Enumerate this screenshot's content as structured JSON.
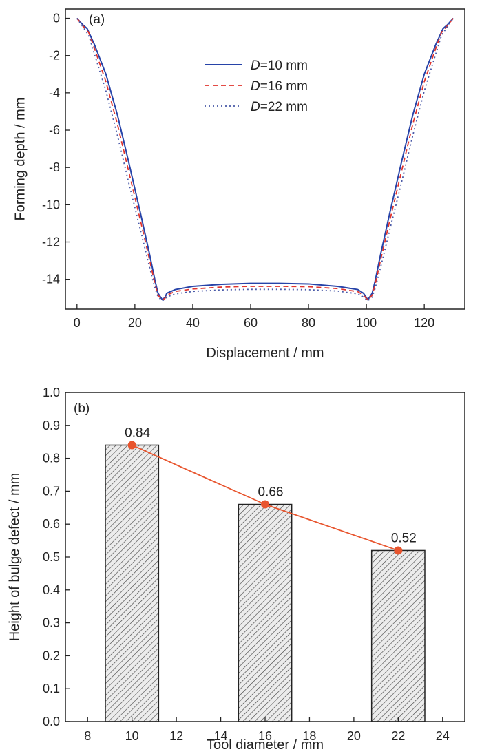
{
  "colors": {
    "series_d10": "#2743a8",
    "series_d16": "#e0332d",
    "series_d22": "#4a5aa8",
    "trend_line": "#e8552e",
    "bar_fill": "#e8e8e8",
    "hatch": "#444444",
    "axis": "#222222"
  },
  "chart_data": [
    {
      "type": "line",
      "panel_label": "(a)",
      "xlabel": "Displacement / mm",
      "ylabel": "Forming depth / mm",
      "xlim": [
        -4,
        134
      ],
      "ylim": [
        -15.6,
        0.5
      ],
      "x_ticks": [
        0,
        20,
        40,
        60,
        80,
        100,
        120
      ],
      "y_ticks": [
        0,
        -2,
        -4,
        -6,
        -8,
        -10,
        -12,
        -14
      ],
      "x_tick_labels": [
        "0",
        "20",
        "40",
        "60",
        "80",
        "100",
        "120"
      ],
      "y_tick_labels": [
        "0",
        "-2",
        "-4",
        "-6",
        "-8",
        "-10",
        "-12",
        "-14"
      ],
      "legend_position": "top-center",
      "series": [
        {
          "name_prefix": "D",
          "name_suffix": "=10 mm",
          "line_style": "solid",
          "color_key": "series_d10",
          "points": [
            [
              0,
              0
            ],
            [
              2,
              -0.35
            ],
            [
              3.5,
              -0.55
            ],
            [
              6,
              -1.4
            ],
            [
              10,
              -3.0
            ],
            [
              14,
              -5.2
            ],
            [
              18,
              -7.8
            ],
            [
              22,
              -10.5
            ],
            [
              25,
              -12.6
            ],
            [
              27,
              -14.1
            ],
            [
              28,
              -14.75
            ],
            [
              29.5,
              -15.1
            ],
            [
              30.5,
              -14.95
            ],
            [
              31,
              -14.75
            ],
            [
              34,
              -14.55
            ],
            [
              40,
              -14.38
            ],
            [
              50,
              -14.27
            ],
            [
              60,
              -14.22
            ],
            [
              70,
              -14.22
            ],
            [
              80,
              -14.25
            ],
            [
              90,
              -14.38
            ],
            [
              97,
              -14.55
            ],
            [
              99,
              -14.75
            ],
            [
              100.5,
              -15.1
            ],
            [
              102,
              -14.75
            ],
            [
              103,
              -14.1
            ],
            [
              105,
              -12.6
            ],
            [
              108,
              -10.5
            ],
            [
              112,
              -7.8
            ],
            [
              116,
              -5.2
            ],
            [
              120,
              -3.0
            ],
            [
              124,
              -1.4
            ],
            [
              126.5,
              -0.55
            ],
            [
              128,
              -0.35
            ],
            [
              130,
              0
            ]
          ]
        },
        {
          "name_prefix": "D",
          "name_suffix": "=16 mm",
          "line_style": "dashed",
          "color_key": "series_d16",
          "points": [
            [
              0,
              0
            ],
            [
              2,
              -0.4
            ],
            [
              4,
              -0.75
            ],
            [
              6,
              -1.6
            ],
            [
              10,
              -3.4
            ],
            [
              14,
              -5.7
            ],
            [
              18,
              -8.3
            ],
            [
              22,
              -10.9
            ],
            [
              25,
              -12.9
            ],
            [
              27,
              -14.3
            ],
            [
              28,
              -14.85
            ],
            [
              29.5,
              -15.12
            ],
            [
              30.5,
              -15.0
            ],
            [
              31,
              -14.85
            ],
            [
              34,
              -14.65
            ],
            [
              40,
              -14.52
            ],
            [
              50,
              -14.42
            ],
            [
              60,
              -14.38
            ],
            [
              70,
              -14.38
            ],
            [
              80,
              -14.4
            ],
            [
              90,
              -14.5
            ],
            [
              97,
              -14.66
            ],
            [
              99,
              -14.85
            ],
            [
              100.5,
              -15.12
            ],
            [
              102,
              -14.85
            ],
            [
              103,
              -14.3
            ],
            [
              105,
              -12.9
            ],
            [
              108,
              -10.9
            ],
            [
              112,
              -8.3
            ],
            [
              116,
              -5.7
            ],
            [
              120,
              -3.4
            ],
            [
              124,
              -1.6
            ],
            [
              126,
              -0.75
            ],
            [
              128,
              -0.4
            ],
            [
              130,
              0
            ]
          ]
        },
        {
          "name_prefix": "D",
          "name_suffix": "=22 mm",
          "line_style": "dotted",
          "color_key": "series_d22",
          "points": [
            [
              0,
              0
            ],
            [
              2,
              -0.45
            ],
            [
              4,
              -0.9
            ],
            [
              6,
              -1.9
            ],
            [
              10,
              -3.9
            ],
            [
              14,
              -6.3
            ],
            [
              18,
              -8.9
            ],
            [
              22,
              -11.4
            ],
            [
              25,
              -13.3
            ],
            [
              27,
              -14.5
            ],
            [
              28,
              -14.95
            ],
            [
              29.5,
              -15.15
            ],
            [
              30.5,
              -15.05
            ],
            [
              31,
              -14.95
            ],
            [
              34,
              -14.78
            ],
            [
              40,
              -14.65
            ],
            [
              50,
              -14.57
            ],
            [
              60,
              -14.54
            ],
            [
              70,
              -14.54
            ],
            [
              80,
              -14.56
            ],
            [
              90,
              -14.63
            ],
            [
              97,
              -14.78
            ],
            [
              99,
              -14.95
            ],
            [
              100.5,
              -15.15
            ],
            [
              102,
              -14.95
            ],
            [
              103,
              -14.5
            ],
            [
              105,
              -13.3
            ],
            [
              108,
              -11.4
            ],
            [
              112,
              -8.9
            ],
            [
              116,
              -6.3
            ],
            [
              120,
              -3.9
            ],
            [
              124,
              -1.9
            ],
            [
              126,
              -0.9
            ],
            [
              128,
              -0.45
            ],
            [
              130,
              0
            ]
          ]
        }
      ]
    },
    {
      "type": "bar",
      "panel_label": "(b)",
      "xlabel": "Tool diameter / mm",
      "ylabel": "Height of bulge defect / mm",
      "xlim": [
        7,
        25
      ],
      "ylim": [
        0,
        1.0
      ],
      "x_ticks": [
        8,
        10,
        12,
        14,
        16,
        18,
        20,
        22,
        24
      ],
      "y_ticks": [
        0.0,
        0.1,
        0.2,
        0.3,
        0.4,
        0.5,
        0.6,
        0.7,
        0.8,
        0.9,
        1.0
      ],
      "x_tick_labels": [
        "8",
        "10",
        "12",
        "14",
        "16",
        "18",
        "20",
        "22",
        "24"
      ],
      "y_tick_labels": [
        "0.0",
        "0.1",
        "0.2",
        "0.3",
        "0.4",
        "0.5",
        "0.6",
        "0.7",
        "0.8",
        "0.9",
        "1.0"
      ],
      "bar_width_data": 2.4,
      "categories": [
        10,
        16,
        22
      ],
      "values": [
        0.84,
        0.66,
        0.52
      ],
      "value_labels": [
        "0.84",
        "0.66",
        "0.52"
      ],
      "bar_style": "hatched",
      "trend_line": true
    }
  ]
}
